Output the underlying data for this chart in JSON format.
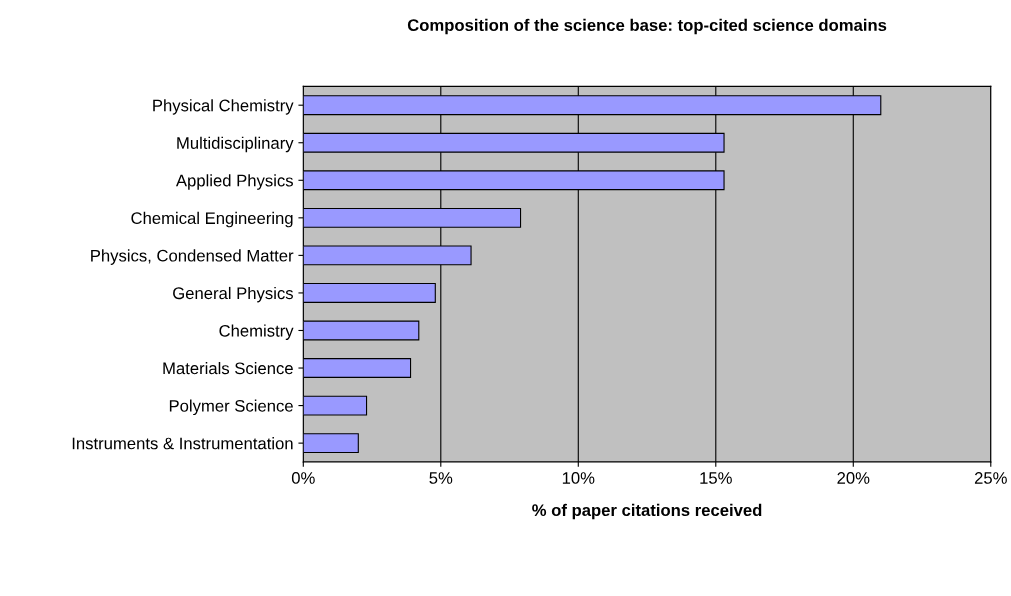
{
  "chart_data": {
    "type": "bar",
    "orientation": "horizontal",
    "title": "Composition of the science base: top-cited science domains",
    "xlabel": "% of paper citations received",
    "categories": [
      "Physical Chemistry",
      "Multidisciplinary",
      "Applied Physics",
      "Chemical Engineering",
      "Physics, Condensed Matter",
      "General Physics",
      "Chemistry",
      "Materials Science",
      "Polymer Science",
      "Instruments & Instrumentation"
    ],
    "values": [
      21.0,
      15.3,
      15.3,
      7.9,
      6.1,
      4.8,
      4.2,
      3.9,
      2.3,
      2.0
    ],
    "color": "#9999ff",
    "xlim": [
      0,
      25
    ],
    "xticks": [
      {
        "value": 0,
        "label": "0%"
      },
      {
        "value": 5,
        "label": "5%"
      },
      {
        "value": 10,
        "label": "10%"
      },
      {
        "value": 15,
        "label": "15%"
      },
      {
        "value": 20,
        "label": "20%"
      },
      {
        "value": 25,
        "label": "25%"
      }
    ],
    "grid": "x",
    "legend": false
  }
}
